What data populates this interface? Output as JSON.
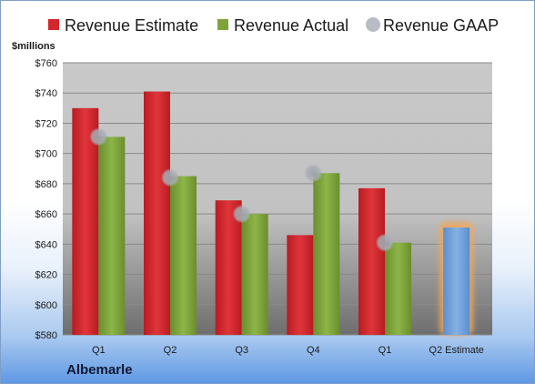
{
  "company": "Albemarle",
  "chart_data": {
    "type": "bar",
    "unit_label": "$millions",
    "categories": [
      "Q1",
      "Q2",
      "Q3",
      "Q4",
      "Q1",
      "Q2 Estimate"
    ],
    "series": [
      {
        "name": "Revenue Estimate",
        "color": "#d4252b",
        "values": [
          730,
          741,
          669,
          646,
          677,
          null
        ]
      },
      {
        "name": "Revenue Actual",
        "color": "#7fa33c",
        "values": [
          711,
          685,
          660,
          687,
          641,
          null
        ]
      },
      {
        "name": "Revenue GAAP",
        "color": "#b8bcc4",
        "marker": "circle",
        "values": [
          711,
          684,
          660,
          687,
          641,
          null
        ]
      }
    ],
    "highlight": {
      "category": "Q2 Estimate",
      "value": 651,
      "color": "#7ba7dd",
      "glow": "#f3a75a"
    },
    "ylim": [
      580,
      760
    ],
    "yticks": [
      580,
      600,
      620,
      640,
      660,
      680,
      700,
      720,
      740,
      760
    ],
    "ytick_labels": [
      "$580",
      "$600",
      "$620",
      "$640",
      "$660",
      "$680",
      "$700",
      "$720",
      "$740",
      "$760"
    ],
    "grid": true,
    "legend_position": "top"
  }
}
